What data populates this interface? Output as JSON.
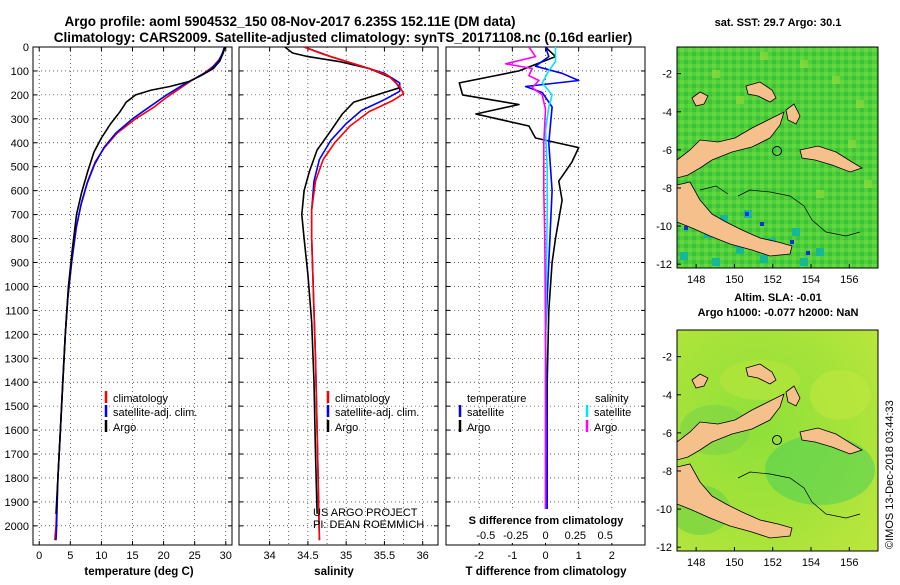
{
  "title": {
    "line1": "Argo profile: aoml 5904532_150 08-Nov-2017 6.235S 152.11E (DM data)",
    "line2": "Climatology: CARS2009. Satellite-adjusted climatology: synTS_20171108.nc (0.16d earlier)"
  },
  "colors": {
    "climatology": "#ff0000",
    "satellite": "#0000ff",
    "argo": "#000000",
    "sat_salinity": "#00e5ff",
    "argo_salinity": "#ff00ff"
  },
  "chart_data": [
    {
      "type": "line",
      "name": "temperature profile",
      "xlabel": "temperature (deg C)",
      "xlim": [
        -1,
        31
      ],
      "xticks": [
        0,
        5,
        10,
        15,
        20,
        25,
        30
      ],
      "ylim": [
        0,
        2080
      ],
      "yticks": [
        0,
        100,
        200,
        300,
        400,
        500,
        600,
        700,
        800,
        900,
        1000,
        1100,
        1200,
        1300,
        1400,
        1500,
        1600,
        1700,
        1800,
        1900,
        2000
      ],
      "legend": [
        "climatology",
        "satellite-adj. clim.",
        "Argo"
      ],
      "series": [
        {
          "name": "climatology",
          "points": [
            [
              29.8,
              0
            ],
            [
              29.5,
              25
            ],
            [
              29.0,
              50
            ],
            [
              28.0,
              80
            ],
            [
              26.5,
              110
            ],
            [
              24.5,
              140
            ],
            [
              22.5,
              175
            ],
            [
              20.5,
              210
            ],
            [
              18.5,
              250
            ],
            [
              15.5,
              300
            ],
            [
              12.5,
              360
            ],
            [
              10.5,
              420
            ],
            [
              9.0,
              480
            ],
            [
              7.8,
              560
            ],
            [
              6.8,
              650
            ],
            [
              6.0,
              750
            ],
            [
              5.2,
              900
            ],
            [
              4.6,
              1050
            ],
            [
              4.2,
              1200
            ],
            [
              3.8,
              1400
            ],
            [
              3.4,
              1600
            ],
            [
              3.0,
              1800
            ],
            [
              2.7,
              2000
            ],
            [
              2.5,
              2060
            ]
          ]
        },
        {
          "name": "satellite-adj. clim.",
          "points": [
            [
              29.8,
              0
            ],
            [
              29.4,
              30
            ],
            [
              28.8,
              60
            ],
            [
              27.5,
              95
            ],
            [
              25.5,
              125
            ],
            [
              23.0,
              160
            ],
            [
              20.5,
              200
            ],
            [
              18.0,
              245
            ],
            [
              15.0,
              300
            ],
            [
              12.3,
              360
            ],
            [
              10.4,
              420
            ],
            [
              8.9,
              490
            ],
            [
              7.7,
              570
            ],
            [
              6.7,
              660
            ],
            [
              5.9,
              760
            ],
            [
              5.2,
              900
            ],
            [
              4.6,
              1050
            ],
            [
              4.2,
              1200
            ],
            [
              3.8,
              1400
            ],
            [
              3.4,
              1600
            ],
            [
              3.0,
              1800
            ],
            [
              2.8,
              2000
            ],
            [
              2.7,
              2060
            ]
          ]
        },
        {
          "name": "Argo",
          "points": [
            [
              29.9,
              0
            ],
            [
              29.5,
              30
            ],
            [
              29.0,
              60
            ],
            [
              28.0,
              90
            ],
            [
              26.0,
              120
            ],
            [
              24.0,
              145
            ],
            [
              21.0,
              165
            ],
            [
              18.0,
              180
            ],
            [
              15.5,
              200
            ],
            [
              14.0,
              230
            ],
            [
              13.0,
              270
            ],
            [
              11.5,
              320
            ],
            [
              10.0,
              380
            ],
            [
              8.8,
              440
            ],
            [
              7.8,
              520
            ],
            [
              6.8,
              610
            ],
            [
              6.0,
              700
            ],
            [
              5.3,
              850
            ],
            [
              4.7,
              1000
            ],
            [
              4.2,
              1200
            ],
            [
              3.8,
              1400
            ],
            [
              3.4,
              1600
            ],
            [
              3.0,
              1800
            ],
            [
              2.7,
              1950
            ]
          ]
        }
      ]
    },
    {
      "type": "line",
      "name": "salinity profile",
      "xlabel": "salinity",
      "xlim": [
        33.6,
        36.2
      ],
      "xticks": [
        34,
        34.5,
        35,
        35.5,
        36
      ],
      "ylim": [
        0,
        2080
      ],
      "legend": [
        "climatology",
        "satellite-adj. clim.",
        "Argo"
      ],
      "annotations": [
        "US ARGO PROJECT",
        "PI: DEAN ROEMMICH"
      ],
      "series": [
        {
          "name": "climatology",
          "points": [
            [
              34.45,
              0
            ],
            [
              34.7,
              30
            ],
            [
              35.0,
              60
            ],
            [
              35.3,
              90
            ],
            [
              35.55,
              120
            ],
            [
              35.7,
              165
            ],
            [
              35.75,
              195
            ],
            [
              35.6,
              225
            ],
            [
              35.3,
              270
            ],
            [
              35.05,
              330
            ],
            [
              34.85,
              400
            ],
            [
              34.7,
              470
            ],
            [
              34.6,
              560
            ],
            [
              34.55,
              680
            ],
            [
              34.55,
              800
            ],
            [
              34.57,
              1000
            ],
            [
              34.6,
              1300
            ],
            [
              34.62,
              1600
            ],
            [
              34.64,
              1900
            ],
            [
              34.65,
              2060
            ]
          ]
        },
        {
          "name": "satellite-adj. clim.",
          "points": [
            [
              34.45,
              0
            ],
            [
              34.8,
              40
            ],
            [
              35.2,
              80
            ],
            [
              35.5,
              110
            ],
            [
              35.7,
              150
            ],
            [
              35.7,
              185
            ],
            [
              35.5,
              220
            ],
            [
              35.2,
              265
            ],
            [
              35.0,
              320
            ],
            [
              34.8,
              390
            ],
            [
              34.65,
              470
            ],
            [
              34.58,
              560
            ],
            [
              34.55,
              680
            ],
            [
              34.55,
              800
            ],
            [
              34.57,
              1000
            ],
            [
              34.6,
              1300
            ],
            [
              34.62,
              1600
            ],
            [
              34.64,
              1900
            ],
            [
              34.65,
              2060
            ]
          ]
        },
        {
          "name": "Argo",
          "points": [
            [
              34.2,
              0
            ],
            [
              34.3,
              25
            ],
            [
              34.5,
              40
            ],
            [
              34.9,
              60
            ],
            [
              35.3,
              90
            ],
            [
              35.6,
              130
            ],
            [
              35.7,
              170
            ],
            [
              35.4,
              200
            ],
            [
              35.1,
              230
            ],
            [
              34.95,
              280
            ],
            [
              34.8,
              350
            ],
            [
              34.62,
              430
            ],
            [
              34.52,
              520
            ],
            [
              34.45,
              600
            ],
            [
              34.42,
              700
            ],
            [
              34.45,
              800
            ],
            [
              34.5,
              950
            ],
            [
              34.55,
              1150
            ],
            [
              34.58,
              1400
            ],
            [
              34.6,
              1700
            ],
            [
              34.62,
              1950
            ]
          ]
        }
      ]
    },
    {
      "type": "line",
      "name": "difference from climatology",
      "xlabel": "T difference from climatology",
      "x2label": "S difference from climatology",
      "xlim": [
        -3,
        3
      ],
      "xticks": [
        -2,
        -1,
        0,
        1,
        2
      ],
      "x2ticks": [
        "-0.5",
        "-0.25",
        "0",
        "0.25",
        "0.5"
      ],
      "ylim": [
        0,
        2080
      ],
      "legend_temperature_header": "temperature",
      "legend_salinity_header": "salinity",
      "legend_temperature": [
        "satellite",
        "Argo"
      ],
      "legend_salinity": [
        "satellite",
        "Argo"
      ],
      "series": [
        {
          "name": "T satellite",
          "points": [
            [
              0,
              0
            ],
            [
              0.1,
              40
            ],
            [
              -0.3,
              80
            ],
            [
              0.5,
              110
            ],
            [
              1.0,
              140
            ],
            [
              -0.6,
              165
            ],
            [
              -0.1,
              190
            ],
            [
              0.2,
              250
            ],
            [
              0.1,
              400
            ],
            [
              0.2,
              600
            ],
            [
              0.1,
              900
            ],
            [
              0.0,
              1200
            ],
            [
              0.05,
              1600
            ],
            [
              0.05,
              2000
            ]
          ]
        },
        {
          "name": "T Argo",
          "points": [
            [
              0,
              0
            ],
            [
              0.3,
              40
            ],
            [
              -0.8,
              100
            ],
            [
              -2.6,
              150
            ],
            [
              -2.5,
              200
            ],
            [
              -0.8,
              240
            ],
            [
              -2.1,
              280
            ],
            [
              -0.5,
              330
            ],
            [
              -0.3,
              380
            ],
            [
              1.0,
              420
            ],
            [
              0.8,
              480
            ],
            [
              0.4,
              560
            ],
            [
              0.5,
              640
            ],
            [
              0.4,
              720
            ],
            [
              0.3,
              800
            ],
            [
              0.2,
              900
            ],
            [
              0.1,
              1100
            ],
            [
              0.05,
              1400
            ],
            [
              0.05,
              1700
            ],
            [
              0.0,
              1950
            ]
          ]
        },
        {
          "name": "S satellite",
          "points": [
            [
              0.3,
              0
            ],
            [
              0.3,
              60
            ],
            [
              0.1,
              100
            ],
            [
              -0.1,
              150
            ],
            [
              0.2,
              200
            ],
            [
              0.1,
              250
            ],
            [
              0.0,
              350
            ],
            [
              0.05,
              500
            ],
            [
              0.05,
              700
            ],
            [
              0.02,
              1000
            ],
            [
              0.0,
              1400
            ],
            [
              0.0,
              2000
            ]
          ]
        },
        {
          "name": "S Argo",
          "points": [
            [
              -0.5,
              0
            ],
            [
              -0.3,
              40
            ],
            [
              -1.2,
              70
            ],
            [
              -0.4,
              90
            ],
            [
              -0.5,
              120
            ],
            [
              -0.2,
              140
            ],
            [
              -0.4,
              170
            ],
            [
              -0.1,
              200
            ],
            [
              0.0,
              260
            ],
            [
              -0.05,
              400
            ],
            [
              -0.05,
              600
            ],
            [
              -0.02,
              800
            ],
            [
              0.0,
              1200
            ],
            [
              0.0,
              2000
            ]
          ]
        }
      ]
    },
    {
      "type": "heatmap",
      "name": "satellite SST map",
      "title": "sat. SST: 29.7 Argo: 30.1",
      "xticks": [
        148,
        150,
        152,
        154,
        156
      ],
      "yticks": [
        -2,
        -4,
        -6,
        -8,
        -10,
        -12
      ],
      "argo_position": [
        152.11,
        -6.235
      ]
    },
    {
      "type": "heatmap",
      "name": "altimetry SLA map",
      "title_line1": "Altim. SLA: -0.01",
      "title_line2": "Argo h1000: -0.077 h2000: NaN",
      "xticks": [
        148,
        150,
        152,
        154,
        156
      ],
      "yticks": [
        -2,
        -4,
        -6,
        -8,
        -10,
        -12
      ],
      "argo_position": [
        152.11,
        -6.235
      ]
    }
  ],
  "credit": "©IMOS 13-Dec-2018 03:44:33"
}
